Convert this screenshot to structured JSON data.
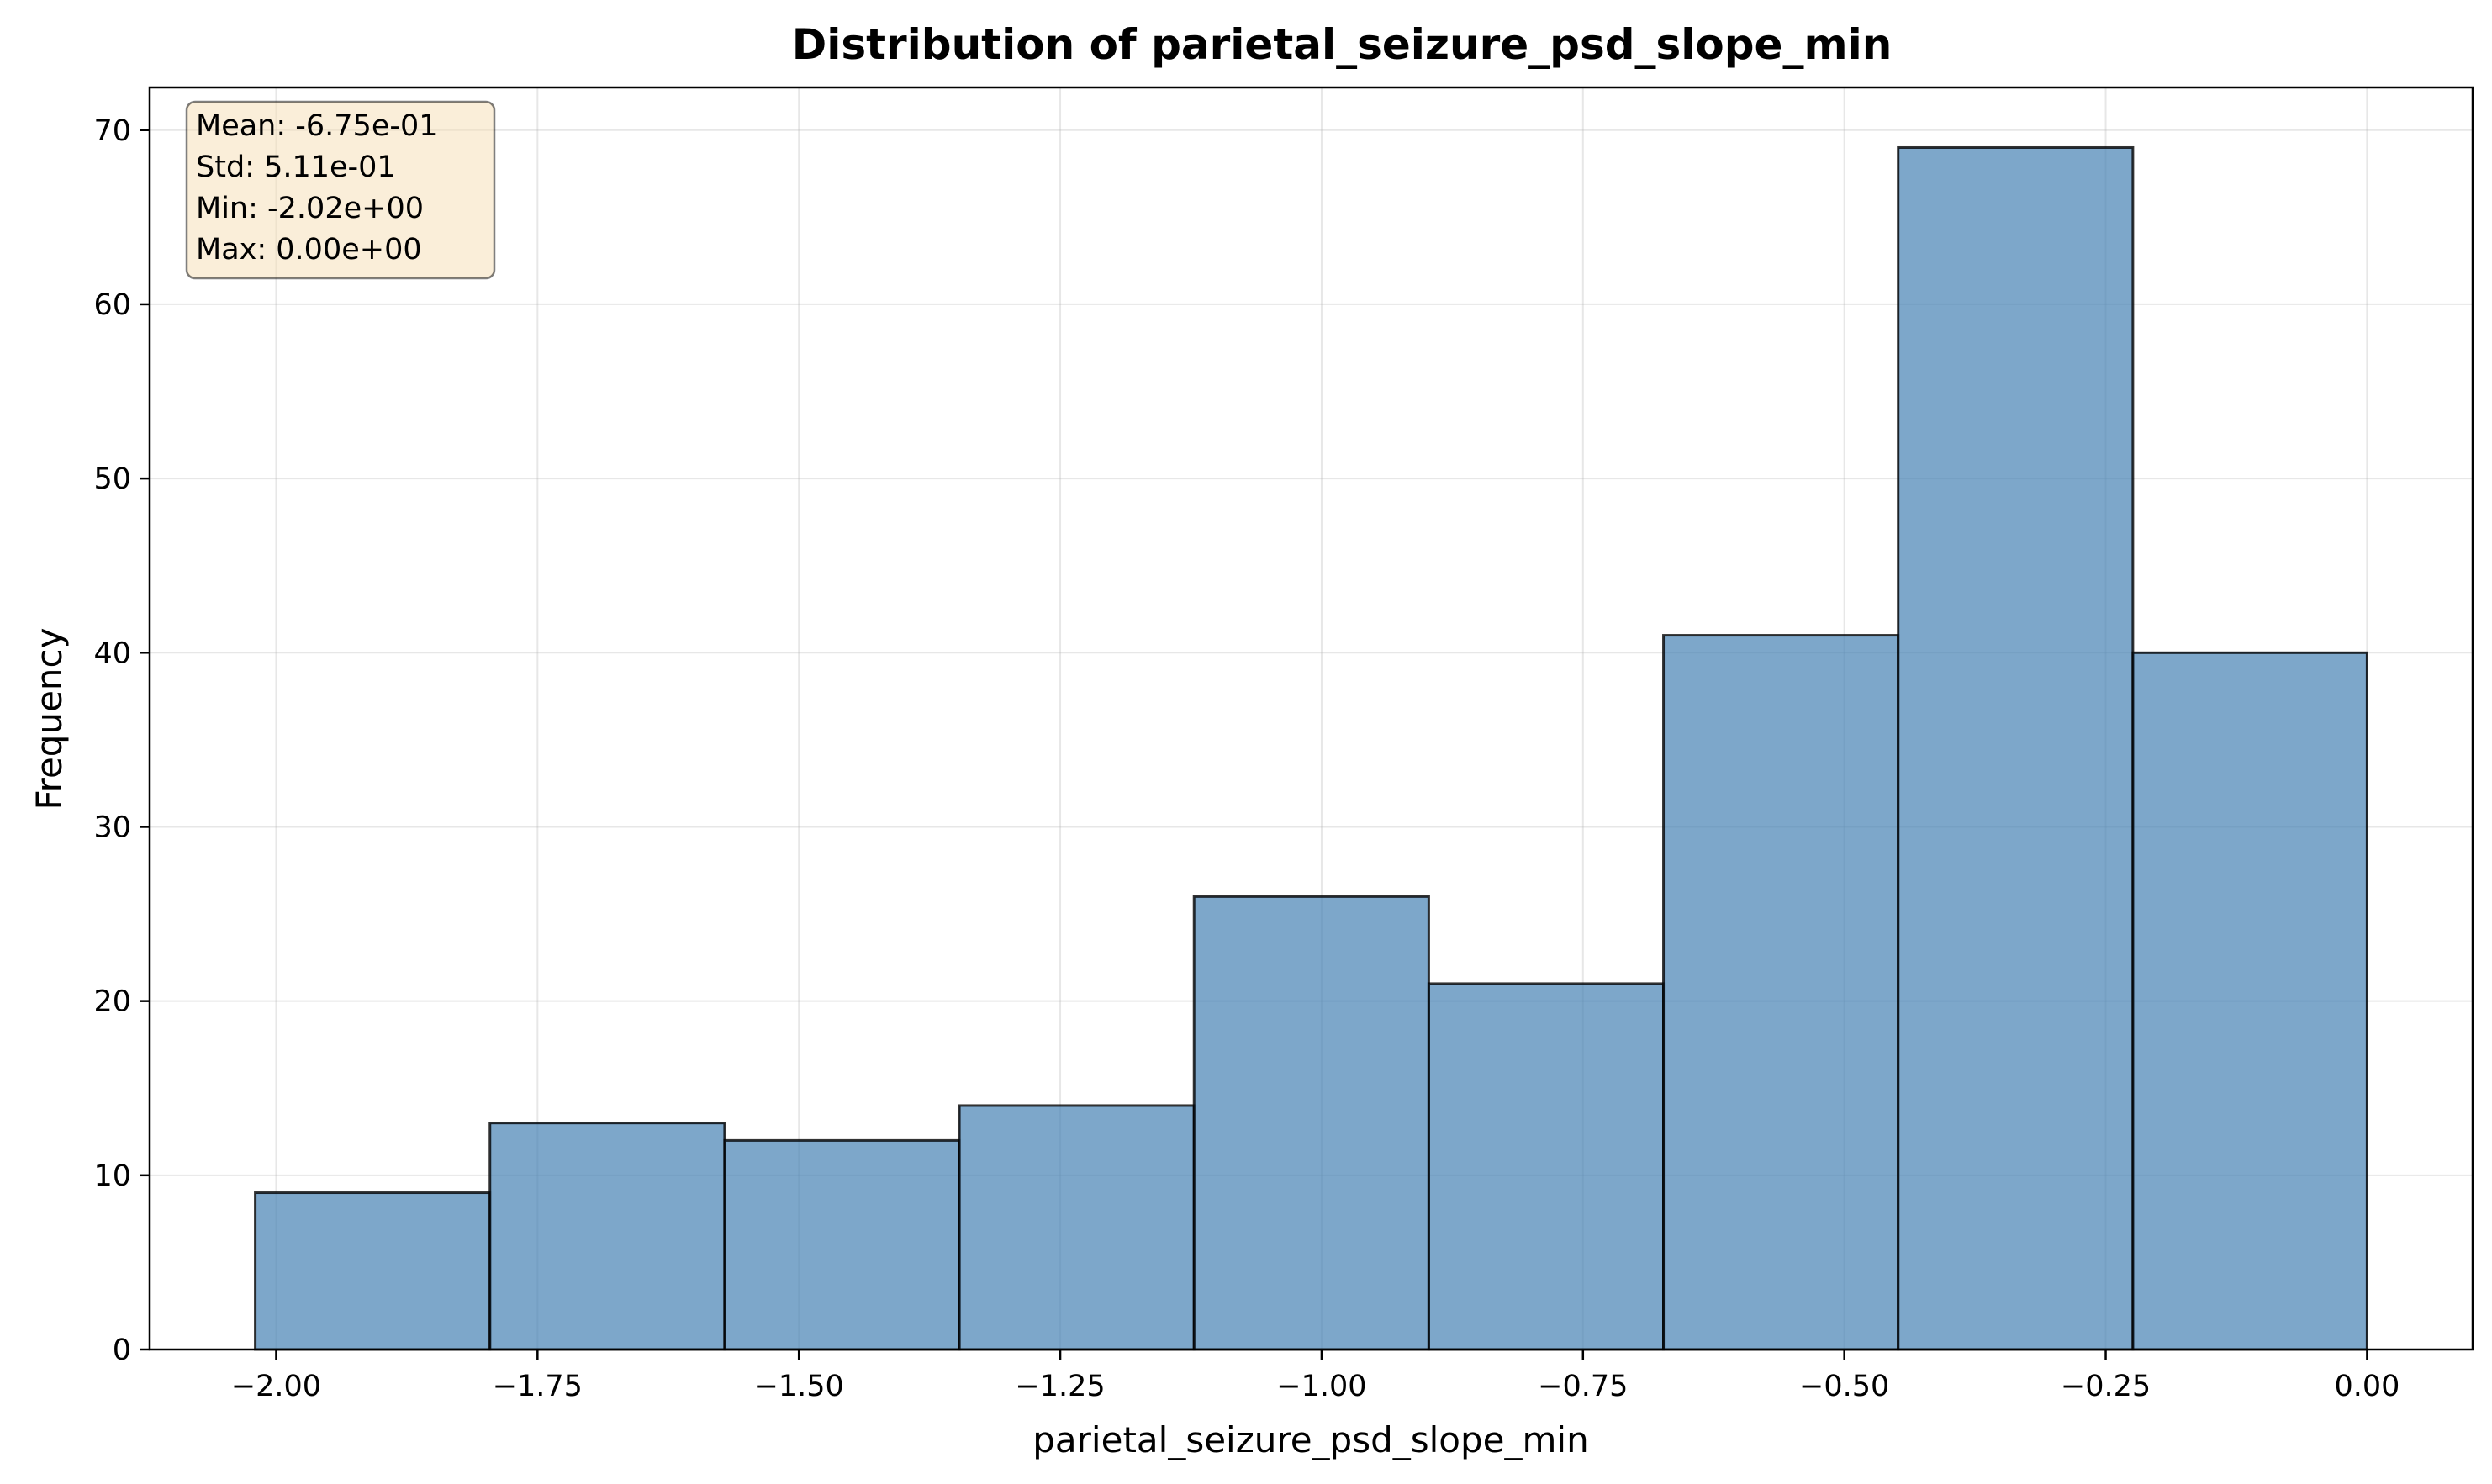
{
  "chart_data": {
    "type": "bar",
    "title": "Distribution of parietal_seizure_psd_slope_min",
    "xlabel": "parietal_seizure_psd_slope_min",
    "ylabel": "Frequency",
    "bin_edges": [
      -2.02,
      -1.7955,
      -1.571,
      -1.3465,
      -1.122,
      -0.8975,
      -0.673,
      -0.4485,
      -0.224,
      0.0
    ],
    "values": [
      9,
      13,
      12,
      14,
      26,
      21,
      41,
      69,
      40
    ],
    "xlim": [
      -2.121,
      0.101
    ],
    "ylim": [
      0,
      72.45
    ],
    "xticks": [
      -2.0,
      -1.75,
      -1.5,
      -1.25,
      -1.0,
      -0.75,
      -0.5,
      -0.25,
      0.0
    ],
    "xtick_labels": [
      "−2.00",
      "−1.75",
      "−1.50",
      "−1.25",
      "−1.00",
      "−0.75",
      "−0.50",
      "−0.25",
      "0.00"
    ],
    "yticks": [
      0,
      10,
      20,
      30,
      40,
      50,
      60,
      70
    ],
    "ytick_labels": [
      "0",
      "10",
      "20",
      "30",
      "40",
      "50",
      "60",
      "70"
    ],
    "grid": true,
    "bar_color": "#4682b4",
    "bar_edge_color": "#000000",
    "stats_box": {
      "placement": "top-left",
      "lines": [
        "Mean: -6.75e-01",
        "Std: 5.11e-01",
        "Min: -2.02e+00",
        "Max: 0.00e+00"
      ],
      "background": "#f5deb3"
    }
  }
}
